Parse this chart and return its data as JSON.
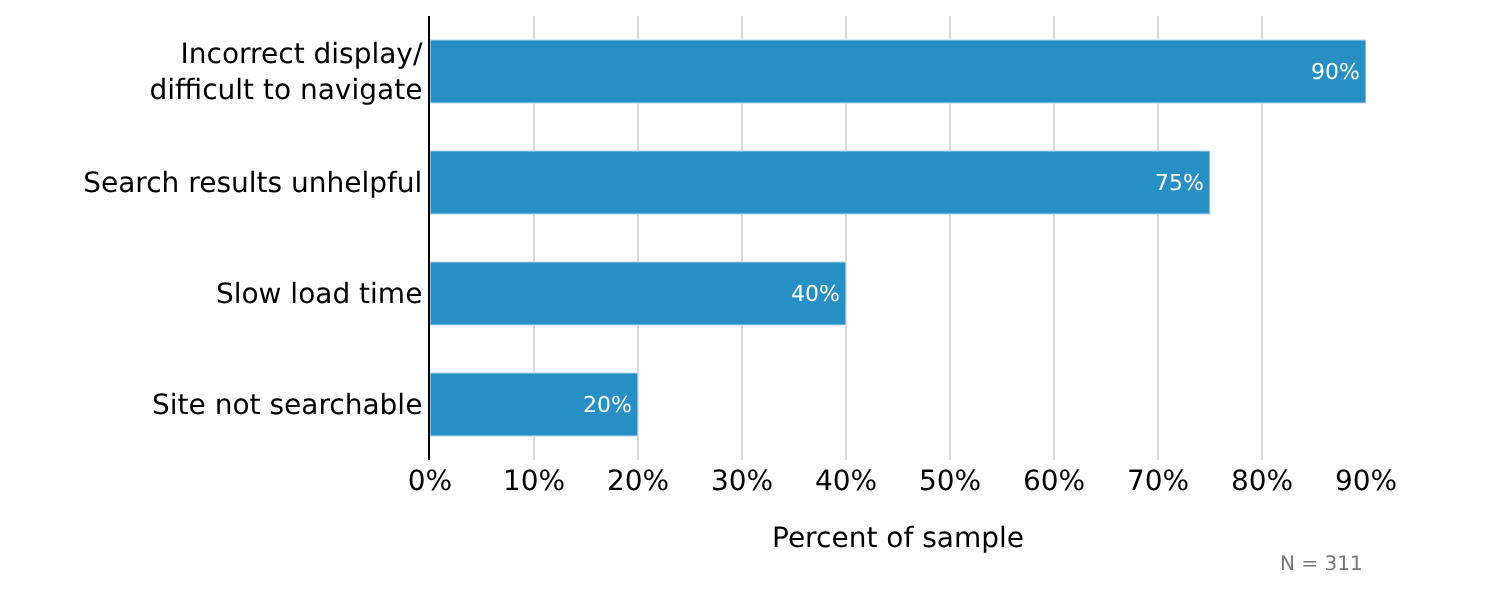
{
  "chart_data": {
    "type": "bar",
    "orientation": "horizontal",
    "categories": [
      "Incorrect display/\ndifficult to navigate",
      "Search results unhelpful",
      "Slow load time",
      "Site not searchable"
    ],
    "values": [
      90,
      75,
      40,
      20
    ],
    "color": "#268fc4",
    "value_labels": [
      "90%",
      "75%",
      "40%",
      "20%"
    ],
    "xlim": [
      0,
      90
    ],
    "xticks": [
      {
        "value": 0,
        "label": "0%"
      },
      {
        "value": 10,
        "label": "10%"
      },
      {
        "value": 20,
        "label": "20%"
      },
      {
        "value": 30,
        "label": "30%"
      },
      {
        "value": 40,
        "label": "40%"
      },
      {
        "value": 50,
        "label": "50%"
      },
      {
        "value": 60,
        "label": "60%"
      },
      {
        "value": 70,
        "label": "70%"
      },
      {
        "value": 80,
        "label": "80%"
      },
      {
        "value": 90,
        "label": "90%"
      }
    ],
    "xlabel": "Percent of sample",
    "grid": "x",
    "legend": false,
    "annotations": [
      "N = 311"
    ]
  }
}
